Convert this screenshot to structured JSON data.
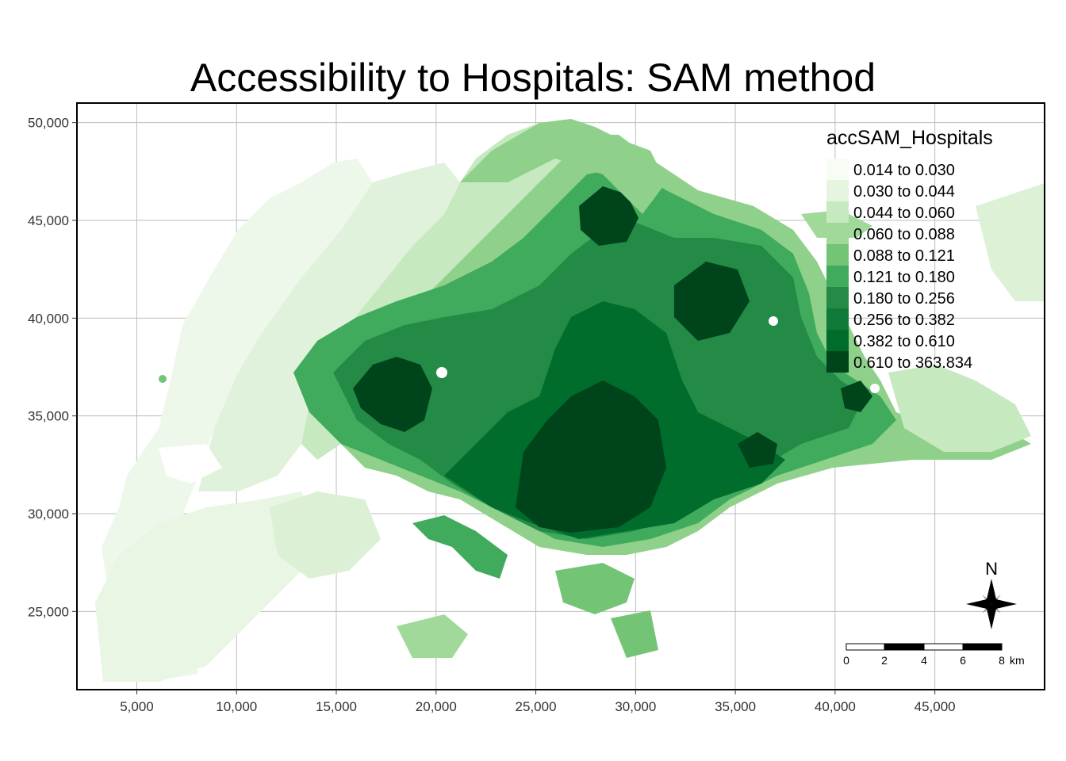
{
  "title": "Accessibility to Hospitals: SAM method",
  "legend": {
    "title": "accSAM_Hospitals",
    "placement": "top-right",
    "classes": [
      {
        "label": "0.014 to 0.030",
        "color": "#f7fcf5"
      },
      {
        "label": "0.030 to 0.044",
        "color": "#e5f5e0"
      },
      {
        "label": "0.044 to 0.060",
        "color": "#c7e9c0"
      },
      {
        "label": "0.060 to 0.088",
        "color": "#a1d99b"
      },
      {
        "label": "0.088 to 0.121",
        "color": "#74c476"
      },
      {
        "label": "0.121 to 0.180",
        "color": "#41ab5d"
      },
      {
        "label": "0.180 to 0.256",
        "color": "#238b45"
      },
      {
        "label": "0.256 to 0.382",
        "color": "#107a38"
      },
      {
        "label": "0.382 to 0.610",
        "color": "#006d2c"
      },
      {
        "label": "0.610 to 363.834",
        "color": "#00441b"
      }
    ]
  },
  "axes": {
    "x_range": [
      2000,
      50500
    ],
    "y_range": [
      21000,
      51000
    ],
    "x_ticks": [
      "5,000",
      "10,000",
      "15,000",
      "20,000",
      "25,000",
      "30,000",
      "35,000",
      "40,000",
      "45,000"
    ],
    "x_tick_values": [
      5000,
      10000,
      15000,
      20000,
      25000,
      30000,
      35000,
      40000,
      45000
    ],
    "y_ticks": [
      "50,000",
      "45,000",
      "40,000",
      "35,000",
      "30,000",
      "25,000"
    ],
    "y_tick_values": [
      50000,
      45000,
      40000,
      35000,
      30000,
      25000
    ],
    "grid": true
  },
  "compass": {
    "label": "N",
    "icon": "north-arrow-icon"
  },
  "scale_bar": {
    "tick_labels": [
      "0",
      "2",
      "4",
      "6",
      "8"
    ],
    "unit": "km"
  }
}
